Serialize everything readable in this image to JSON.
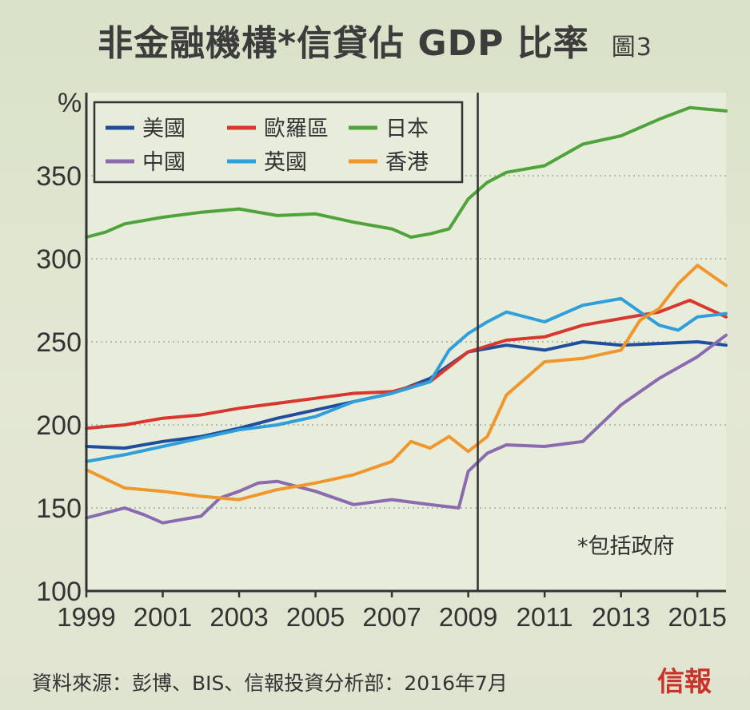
{
  "title": "非金融機構*信貸佔 GDP 比率",
  "figure_label": "圖3",
  "footer": "資料來源：彭博、BIS、信報投資分析部：2016年7月",
  "logo": "信報",
  "colors": {
    "background": "#dde3cf",
    "us": "#1f4e9c",
    "eurozone": "#d7372e",
    "japan": "#4ea33a",
    "china": "#8a6bb0",
    "uk": "#2f9fdc",
    "hongkong": "#f0962a"
  },
  "chart_data": {
    "type": "line",
    "title": "非金融機構*信貸佔 GDP 比率",
    "ylabel": "%",
    "xlabel": "",
    "xlim": [
      1999,
      2015.75
    ],
    "ylim": [
      100,
      400
    ],
    "yticks": [
      100,
      150,
      200,
      250,
      300,
      350
    ],
    "xticks": [
      1999,
      2001,
      2003,
      2005,
      2007,
      2009,
      2011,
      2013,
      2015
    ],
    "grid": "horizontal dotted",
    "legend": "top-left",
    "vline": 2009.25,
    "annotation": "*包括政府",
    "series": [
      {
        "name": "美國",
        "key": "us",
        "x": [
          1999,
          2000,
          2001,
          2002,
          2003,
          2004,
          2005,
          2006,
          2007,
          2008,
          2009,
          2010,
          2011,
          2012,
          2013,
          2014,
          2015,
          2015.75
        ],
        "y": [
          187,
          186,
          190,
          193,
          198,
          204,
          209,
          214,
          219,
          228,
          244,
          248,
          245,
          250,
          248,
          249,
          250,
          248
        ]
      },
      {
        "name": "歐羅區",
        "key": "eurozone",
        "x": [
          1999,
          2000,
          2001,
          2002,
          2003,
          2004,
          2005,
          2006,
          2007,
          2008,
          2009,
          2010,
          2011,
          2012,
          2013,
          2014,
          2014.8,
          2015.75
        ],
        "y": [
          198,
          200,
          204,
          206,
          210,
          213,
          216,
          219,
          220,
          226,
          244,
          251,
          253,
          260,
          264,
          268,
          275,
          265
        ]
      },
      {
        "name": "日本",
        "key": "japan",
        "x": [
          1999,
          1999.5,
          2000,
          2001,
          2002,
          2003,
          2004,
          2005,
          2006,
          2007,
          2007.5,
          2008,
          2008.5,
          2009,
          2009.5,
          2010,
          2011,
          2012,
          2013,
          2014,
          2014.8,
          2015.75
        ],
        "y": [
          313,
          316,
          321,
          325,
          328,
          330,
          326,
          327,
          322,
          318,
          313,
          315,
          318,
          336,
          346,
          352,
          356,
          369,
          374,
          384,
          391,
          389
        ]
      },
      {
        "name": "中國",
        "key": "china",
        "x": [
          1999,
          2000,
          2000.5,
          2001,
          2002,
          2002.5,
          2003,
          2003.5,
          2004,
          2005,
          2006,
          2007,
          2008,
          2008.75,
          2009,
          2009.5,
          2010,
          2011,
          2012,
          2013,
          2014,
          2015,
          2015.75
        ],
        "y": [
          144,
          150,
          146,
          141,
          145,
          156,
          160,
          165,
          166,
          160,
          152,
          155,
          152,
          150,
          172,
          183,
          188,
          187,
          190,
          212,
          228,
          241,
          254
        ]
      },
      {
        "name": "英國",
        "key": "uk",
        "x": [
          1999,
          2000,
          2001,
          2002,
          2003,
          2004,
          2005,
          2006,
          2007,
          2008,
          2008.5,
          2009,
          2009.5,
          2010,
          2011,
          2012,
          2013,
          2013.5,
          2014,
          2014.5,
          2015,
          2015.75
        ],
        "y": [
          178,
          182,
          187,
          192,
          197,
          200,
          205,
          214,
          219,
          226,
          245,
          255,
          262,
          268,
          262,
          272,
          276,
          268,
          260,
          257,
          265,
          267
        ]
      },
      {
        "name": "香港",
        "key": "hongkong",
        "x": [
          1999,
          2000,
          2001,
          2002,
          2003,
          2004,
          2005,
          2006,
          2007,
          2007.5,
          2008,
          2008.5,
          2009,
          2009.5,
          2010,
          2011,
          2012,
          2013,
          2013.5,
          2014,
          2014.5,
          2015,
          2015.75
        ],
        "y": [
          173,
          162,
          160,
          157,
          155,
          161,
          165,
          170,
          178,
          190,
          186,
          193,
          184,
          193,
          218,
          238,
          240,
          245,
          263,
          270,
          285,
          296,
          284
        ]
      }
    ]
  }
}
